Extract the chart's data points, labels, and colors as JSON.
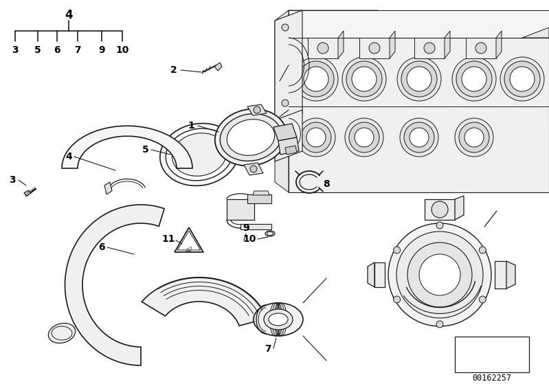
{
  "background_color": "#ffffff",
  "image_number": "00162257",
  "bracket_label": "4",
  "bracket_items": [
    "3",
    "5",
    "6",
    "7",
    "9",
    "10"
  ],
  "line_color": "#1a1a1a",
  "text_color": "#000000",
  "lw_main": 1.2,
  "lw_thin": 0.7,
  "lw_label": 0.8
}
